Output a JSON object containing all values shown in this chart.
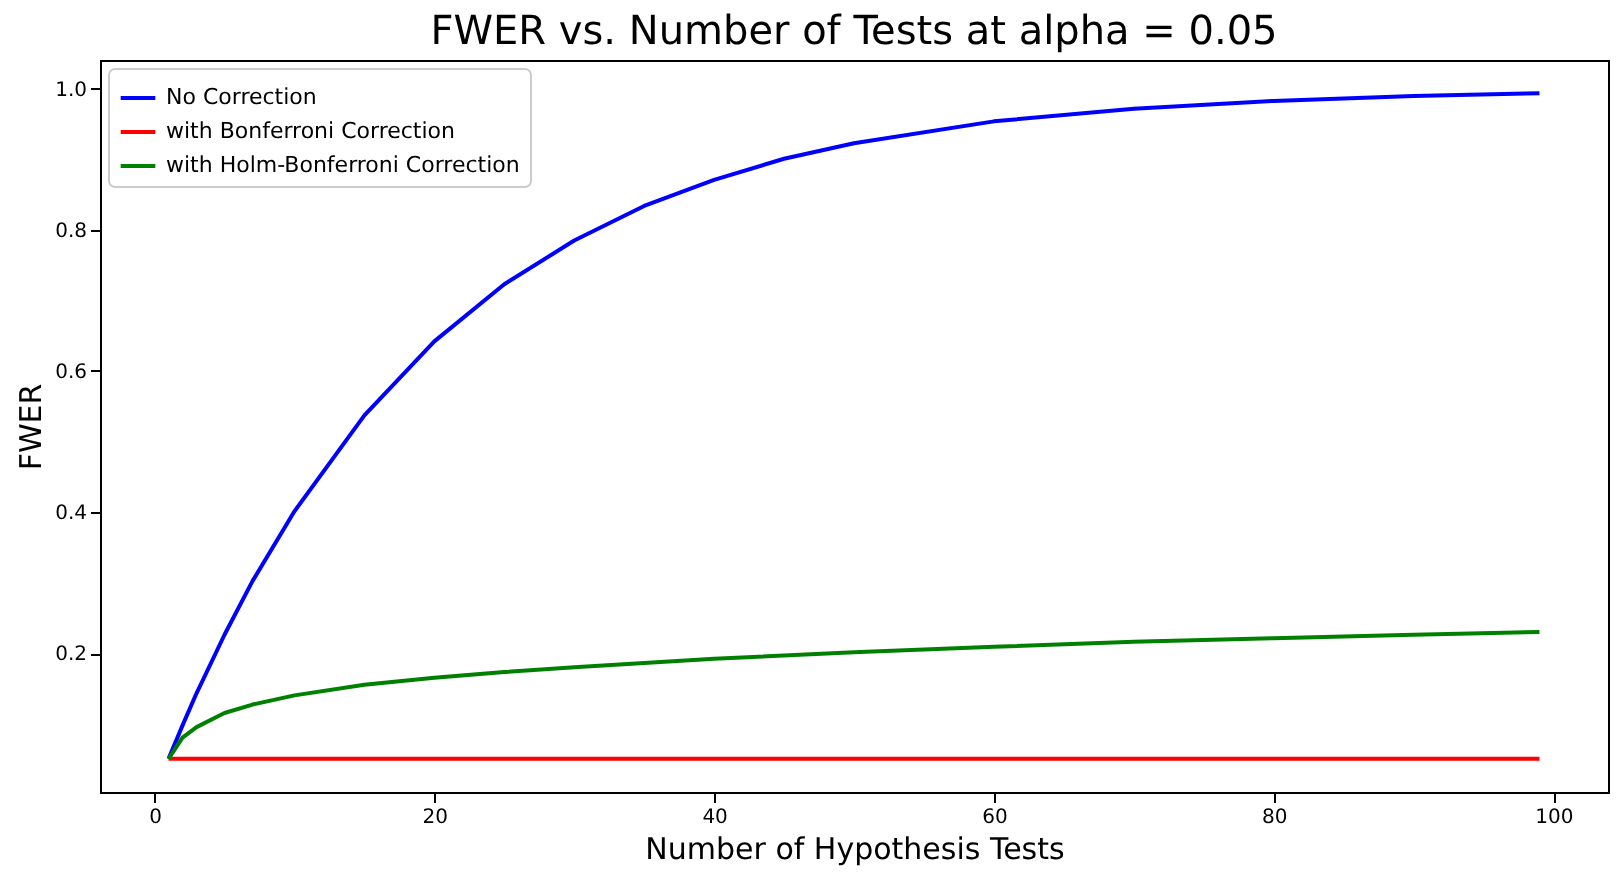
{
  "chart_data": {
    "type": "line",
    "title": "FWER vs. Number of Tests at alpha = 0.05",
    "xlabel": "Number of Hypothesis Tests",
    "ylabel": "FWER",
    "xlim": [
      -3.9,
      103.9
    ],
    "xticks": [
      0,
      20,
      40,
      60,
      80,
      100
    ],
    "ylim": [
      0.003,
      1.041
    ],
    "yticks": [
      0.2,
      0.4,
      0.6,
      0.8,
      {
        "value": 1.0,
        "label": "1.0"
      }
    ],
    "grid": false,
    "legend": "top left",
    "marker": "none",
    "line_style": "solid",
    "series": [
      {
        "name": "No Correction",
        "color": "#0000ff",
        "x": [
          1,
          2,
          3,
          5,
          7,
          10,
          15,
          20,
          25,
          30,
          35,
          40,
          45,
          50,
          60,
          70,
          80,
          90,
          99
        ],
        "values": [
          0.05,
          0.0975,
          0.143,
          0.226,
          0.302,
          0.401,
          0.537,
          0.642,
          0.723,
          0.785,
          0.834,
          0.871,
          0.901,
          0.923,
          0.954,
          0.972,
          0.983,
          0.99,
          0.994
        ]
      },
      {
        "name": "with Bonferroni Correction",
        "color": "#ff0000",
        "x": [
          1,
          99
        ],
        "values": [
          0.05,
          0.05
        ]
      },
      {
        "name": "with Holm-Bonferroni Correction",
        "color": "#008000",
        "x": [
          1,
          2,
          3,
          5,
          7,
          10,
          15,
          20,
          25,
          30,
          40,
          50,
          60,
          70,
          80,
          90,
          99
        ],
        "values": [
          0.05,
          0.08,
          0.095,
          0.115,
          0.127,
          0.14,
          0.155,
          0.165,
          0.173,
          0.18,
          0.192,
          0.201,
          0.209,
          0.216,
          0.221,
          0.226,
          0.23
        ]
      }
    ]
  }
}
